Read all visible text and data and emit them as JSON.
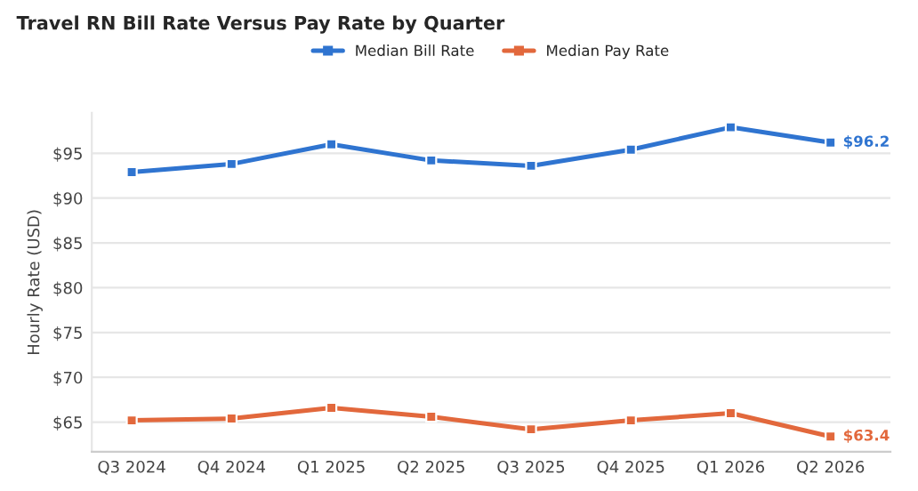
{
  "chart_data": {
    "type": "line",
    "title": "Travel RN Bill Rate Versus Pay Rate by Quarter",
    "ylabel": "Hourly Rate (USD)",
    "categories": [
      "Q3 2024",
      "Q4 2024",
      "Q1 2025",
      "Q2 2025",
      "Q3 2025",
      "Q4 2025",
      "Q1 2026",
      "Q2 2026"
    ],
    "series": [
      {
        "name": "Median Bill Rate",
        "color": "#2f74d0",
        "values": [
          92.9,
          93.8,
          96.0,
          94.2,
          93.6,
          95.4,
          97.9,
          96.2
        ],
        "value_labels": [
          null,
          null,
          null,
          null,
          null,
          null,
          null,
          "$96.2"
        ]
      },
      {
        "name": "Median Pay Rate",
        "color": "#e2683c",
        "values": [
          65.2,
          65.4,
          66.6,
          65.6,
          64.2,
          65.2,
          66.0,
          63.4
        ],
        "value_labels": [
          null,
          null,
          null,
          null,
          null,
          null,
          null,
          "$63.4"
        ]
      }
    ],
    "ylim": [
      61.7,
      99.5
    ],
    "yticks": [
      {
        "value": 65,
        "label": "$65"
      },
      {
        "value": 70,
        "label": "$70"
      },
      {
        "value": 75,
        "label": "$75"
      },
      {
        "value": 80,
        "label": "$80"
      },
      {
        "value": 85,
        "label": "$85"
      },
      {
        "value": 90,
        "label": "$90"
      },
      {
        "value": 95,
        "label": "$95"
      }
    ],
    "grid": "y",
    "legend": "top",
    "marker": "square",
    "line_style": "solid"
  }
}
